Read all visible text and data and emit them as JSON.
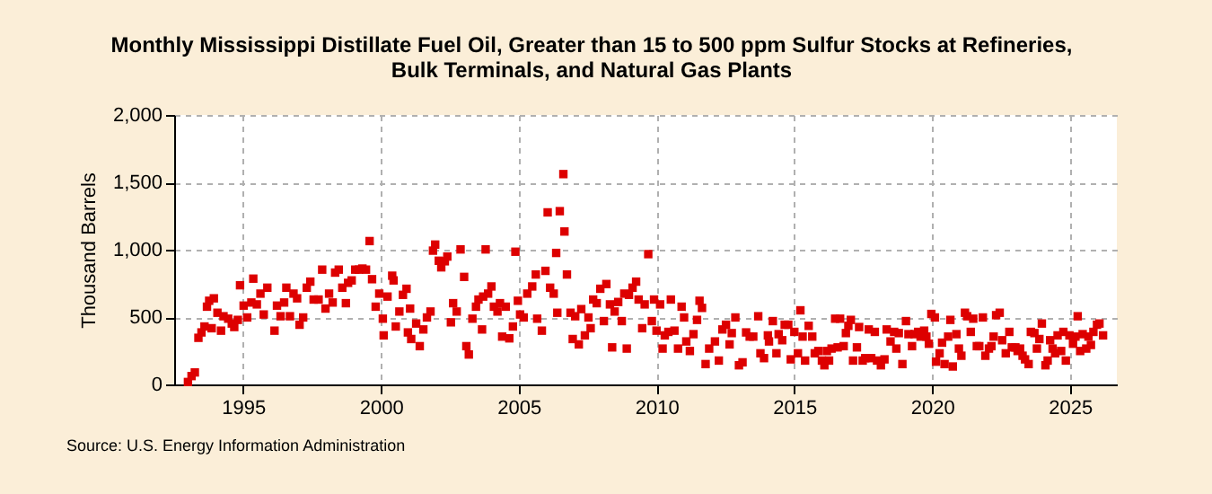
{
  "chart_data": {
    "type": "scatter",
    "title": "Monthly Mississippi Distillate Fuel Oil, Greater than 15 to 500 ppm Sulfur Stocks at Refineries, Bulk Terminals, and Natural Gas Plants",
    "ylabel": "Thousand Barrels",
    "annotations": [
      "Source: U.S. Energy Information Administration"
    ],
    "xlim": [
      1992.5,
      2026.7
    ],
    "xticks": [
      1995,
      2000,
      2005,
      2010,
      2015,
      2020,
      2025
    ],
    "ylim": [
      0,
      2000
    ],
    "yticks": [
      {
        "value": 0,
        "label": "0"
      },
      {
        "value": 500,
        "label": "500"
      },
      {
        "value": 1000,
        "label": "1,000"
      },
      {
        "value": 1500,
        "label": "1,500"
      },
      {
        "value": 2000,
        "label": "2,000"
      }
    ],
    "grid": true,
    "marker": "square",
    "series": [
      {
        "color": "#dd0000",
        "x": [
          1993.0,
          1993.13,
          1993.25,
          1993.38,
          1993.49,
          1993.6,
          1993.69,
          1993.77,
          1993.86,
          1993.94,
          1994.07,
          1994.2,
          1994.29,
          1994.46,
          1994.59,
          1994.68,
          1994.81,
          1994.89,
          1995.02,
          1995.15,
          1995.3,
          1995.37,
          1995.5,
          1995.63,
          1995.75,
          1995.88,
          1996.14,
          1996.23,
          1996.36,
          1996.49,
          1996.57,
          1996.7,
          1996.83,
          1996.96,
          1997.05,
          1997.18,
          1997.31,
          1997.44,
          1997.56,
          1997.74,
          1997.87,
          1997.99,
          1998.12,
          1998.25,
          1998.34,
          1998.47,
          1998.6,
          1998.73,
          1998.81,
          1998.94,
          1999.07,
          1999.2,
          1999.33,
          1999.46,
          1999.59,
          1999.68,
          1999.81,
          1999.94,
          2000.07,
          2000.1,
          2000.24,
          2000.41,
          2000.46,
          2000.54,
          2000.67,
          2000.8,
          2000.93,
          2000.98,
          2001.06,
          2001.1,
          2001.28,
          2001.41,
          2001.54,
          2001.67,
          2001.8,
          2001.89,
          2001.97,
          2002.1,
          2002.19,
          2002.32,
          2002.41,
          2002.54,
          2002.62,
          2002.75,
          2002.89,
          2003.02,
          2003.1,
          2003.19,
          2003.32,
          2003.45,
          2003.54,
          2003.67,
          2003.71,
          2003.8,
          2003.89,
          2004.01,
          2004.1,
          2004.23,
          2004.32,
          2004.4,
          2004.53,
          2004.66,
          2004.79,
          2004.88,
          2004.97,
          2005.05,
          2005.18,
          2005.31,
          2005.49,
          2005.62,
          2005.67,
          2005.84,
          2005.97,
          2006.05,
          2006.14,
          2006.27,
          2006.36,
          2006.4,
          2006.49,
          2006.62,
          2006.66,
          2006.75,
          2006.88,
          2006.96,
          2007.05,
          2007.18,
          2007.27,
          2007.4,
          2007.53,
          2007.61,
          2007.7,
          2007.83,
          2007.96,
          2008.09,
          2008.18,
          2008.31,
          2008.39,
          2008.48,
          2008.61,
          2008.74,
          2008.83,
          2008.92,
          2009.0,
          2009.13,
          2009.26,
          2009.35,
          2009.48,
          2009.57,
          2009.7,
          2009.83,
          2009.91,
          2010.0,
          2010.13,
          2010.22,
          2010.3,
          2010.43,
          2010.52,
          2010.65,
          2010.78,
          2010.91,
          2011.0,
          2011.08,
          2011.21,
          2011.34,
          2011.47,
          2011.56,
          2011.65,
          2011.78,
          2011.91,
          2012.12,
          2012.26,
          2012.39,
          2012.52,
          2012.65,
          2012.73,
          2012.86,
          2012.99,
          2013.12,
          2013.25,
          2013.38,
          2013.51,
          2013.69,
          2013.77,
          2013.9,
          2014.04,
          2014.08,
          2014.22,
          2014.35,
          2014.43,
          2014.56,
          2014.65,
          2014.78,
          2014.87,
          2015.0,
          2015.13,
          2015.22,
          2015.3,
          2015.39,
          2015.52,
          2015.65,
          2015.74,
          2015.87,
          2016.0,
          2016.09,
          2016.18,
          2016.26,
          2016.35,
          2016.48,
          2016.57,
          2016.66,
          2016.79,
          2016.87,
          2016.96,
          2017.05,
          2017.13,
          2017.27,
          2017.35,
          2017.48,
          2017.57,
          2017.7,
          2017.79,
          2017.92,
          2018.0,
          2018.14,
          2018.27,
          2018.35,
          2018.49,
          2018.62,
          2018.7,
          2018.79,
          2018.92,
          2019.05,
          2019.14,
          2019.27,
          2019.36,
          2019.49,
          2019.58,
          2019.71,
          2019.79,
          2019.88,
          2019.97,
          2020.1,
          2020.14,
          2020.27,
          2020.36,
          2020.45,
          2020.58,
          2020.66,
          2020.75,
          2020.88,
          2020.97,
          2021.06,
          2021.19,
          2021.27,
          2021.4,
          2021.49,
          2021.62,
          2021.71,
          2021.84,
          2021.93,
          2022.06,
          2022.15,
          2022.23,
          2022.32,
          2022.45,
          2022.54,
          2022.67,
          2022.8,
          2022.89,
          2023.02,
          2023.1,
          2023.19,
          2023.28,
          2023.37,
          2023.5,
          2023.58,
          2023.71,
          2023.8,
          2023.89,
          2023.98,
          2024.11,
          2024.19,
          2024.28,
          2024.37,
          2024.46,
          2024.55,
          2024.68,
          2024.76,
          2024.85,
          2024.98,
          2025.11,
          2025.2,
          2025.28,
          2025.37,
          2025.46,
          2025.59,
          2025.67,
          2025.76,
          2025.85,
          2025.98,
          2026.07,
          2026.2
        ],
        "values": [
          18,
          62,
          89,
          346,
          386,
          430,
          577,
          621,
          417,
          639,
          532,
          399,
          506,
          488,
          452,
          426,
          479,
          736,
          585,
          497,
          608,
          785,
          594,
          674,
          519,
          718,
          399,
          585,
          506,
          608,
          718,
          506,
          674,
          639,
          443,
          497,
          718,
          763,
          630,
          630,
          852,
          563,
          674,
          608,
          830,
          852,
          718,
          603,
          754,
          772,
          852,
          852,
          860,
          852,
          1064,
          781,
          577,
          674,
          488,
          364,
          652,
          807,
          772,
          430,
          541,
          665,
          710,
          386,
          563,
          337,
          452,
          284,
          408,
          497,
          541,
          993,
          1038,
          918,
          869,
          914,
          949,
          461,
          603,
          541,
          1002,
          798,
          284,
          222,
          488,
          577,
          630,
          408,
          652,
          1002,
          674,
          727,
          577,
          541,
          603,
          355,
          577,
          342,
          430,
          985,
          621,
          519,
          497,
          674,
          727,
          816,
          488,
          399,
          843,
          1277,
          718,
          674,
          976,
          532,
          1286,
          1561,
          1135,
          816,
          532,
          337,
          506,
          297,
          559,
          364,
          497,
          417,
          630,
          603,
          710,
          470,
          745,
          594,
          275,
          541,
          612,
          470,
          674,
          266,
          665,
          718,
          763,
          630,
          417,
          594,
          967,
          470,
          630,
          399,
          594,
          266,
          364,
          390,
          630,
          399,
          266,
          577,
          497,
          319,
          248,
          373,
          479,
          621,
          568,
          151,
          266,
          319,
          177,
          408,
          443,
          297,
          381,
          497,
          142,
          164,
          386,
          355,
          355,
          506,
          231,
          195,
          364,
          319,
          470,
          231,
          373,
          328,
          443,
          443,
          186,
          390,
          231,
          550,
          355,
          177,
          435,
          355,
          231,
          248,
          177,
          142,
          248,
          177,
          266,
          488,
          275,
          488,
          284,
          381,
          435,
          479,
          177,
          275,
          426,
          177,
          195,
          408,
          195,
          390,
          177,
          142,
          186,
          408,
          319,
          390,
          266,
          381,
          151,
          470,
          373,
          284,
          373,
          390,
          355,
          399,
          355,
          302,
          523,
          497,
          169,
          231,
          310,
          151,
          355,
          479,
          133,
          373,
          266,
          213,
          532,
          506,
          390,
          488,
          284,
          284,
          497,
          213,
          266,
          284,
          355,
          514,
          532,
          328,
          231,
          390,
          275,
          275,
          248,
          266,
          213,
          186,
          151,
          390,
          381,
          266,
          337,
          452,
          142,
          177,
          328,
          266,
          231,
          364,
          248,
          390,
          177,
          364,
          302,
          355,
          506,
          248,
          373,
          266,
          355,
          293,
          390,
          443,
          452,
          364
        ]
      }
    ]
  }
}
